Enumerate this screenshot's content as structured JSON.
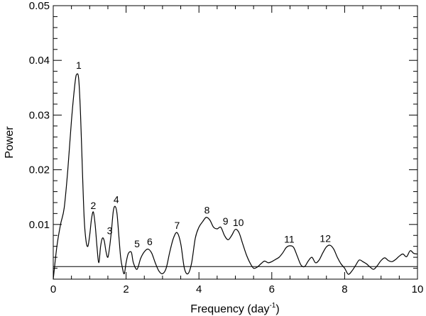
{
  "chart_data": {
    "type": "line",
    "title": "",
    "xlabel": "Frequency (day",
    "xlabel_sup": "-1",
    "xlabel_close": ")",
    "ylabel": "Power",
    "xlim": [
      0,
      10
    ],
    "ylim": [
      0,
      0.05
    ],
    "x_ticks": [
      0,
      2,
      4,
      6,
      8,
      10
    ],
    "x_tick_labels": [
      "0",
      "2",
      "4",
      "6",
      "8",
      "10"
    ],
    "y_ticks": [
      0.01,
      0.02,
      0.03,
      0.04,
      0.05
    ],
    "y_tick_labels": [
      "0.01",
      "0.02",
      "0.03",
      "0.04",
      "0.05"
    ],
    "grid": false,
    "legend": "none",
    "reference_line_y": 0.0023,
    "series": [
      {
        "x": [
          0.0,
          0.1,
          0.2,
          0.3,
          0.4,
          0.5,
          0.6,
          0.65,
          0.7,
          0.75,
          0.8,
          0.85,
          0.9,
          0.95,
          1.0,
          1.05,
          1.1,
          1.15,
          1.2,
          1.25,
          1.3,
          1.35,
          1.4,
          1.45,
          1.5,
          1.55,
          1.6,
          1.65,
          1.7,
          1.75,
          1.8,
          1.85,
          1.9,
          1.95,
          2.0,
          2.05,
          2.1,
          2.15,
          2.2,
          2.3,
          2.4,
          2.5,
          2.6,
          2.7,
          2.8,
          2.9,
          3.0,
          3.1,
          3.2,
          3.3,
          3.4,
          3.5,
          3.6,
          3.7,
          3.8,
          3.9,
          4.0,
          4.1,
          4.2,
          4.3,
          4.4,
          4.5,
          4.6,
          4.7,
          4.8,
          4.9,
          5.0,
          5.1,
          5.2,
          5.3,
          5.4,
          5.5,
          5.6,
          5.7,
          5.8,
          5.9,
          6.0,
          6.1,
          6.2,
          6.3,
          6.4,
          6.5,
          6.6,
          6.7,
          6.8,
          6.9,
          7.0,
          7.1,
          7.2,
          7.3,
          7.4,
          7.5,
          7.6,
          7.7,
          7.8,
          7.9,
          8.0,
          8.1,
          8.2,
          8.3,
          8.4,
          8.5,
          8.6,
          8.7,
          8.8,
          8.9,
          9.0,
          9.1,
          9.2,
          9.3,
          9.4,
          9.5,
          9.6,
          9.7,
          9.8,
          9.9,
          10.0
        ],
        "y": [
          0.0,
          0.006,
          0.01,
          0.013,
          0.02,
          0.029,
          0.036,
          0.0375,
          0.0365,
          0.03,
          0.02,
          0.011,
          0.007,
          0.006,
          0.008,
          0.011,
          0.0123,
          0.01,
          0.006,
          0.003,
          0.006,
          0.0075,
          0.007,
          0.005,
          0.004,
          0.006,
          0.009,
          0.0125,
          0.0133,
          0.012,
          0.008,
          0.004,
          0.002,
          0.001,
          0.003,
          0.0045,
          0.005,
          0.0048,
          0.003,
          0.0018,
          0.0038,
          0.005,
          0.0055,
          0.0048,
          0.003,
          0.0015,
          0.001,
          0.002,
          0.005,
          0.0075,
          0.0085,
          0.0065,
          0.002,
          0.001,
          0.003,
          0.0075,
          0.0095,
          0.0105,
          0.0113,
          0.0108,
          0.0095,
          0.0092,
          0.0095,
          0.008,
          0.0072,
          0.008,
          0.0091,
          0.0085,
          0.0065,
          0.0045,
          0.003,
          0.002,
          0.0022,
          0.0028,
          0.0033,
          0.003,
          0.0032,
          0.0036,
          0.004,
          0.0048,
          0.0058,
          0.0061,
          0.0058,
          0.0042,
          0.0026,
          0.0023,
          0.0033,
          0.004,
          0.003,
          0.0035,
          0.0048,
          0.0059,
          0.0062,
          0.0055,
          0.004,
          0.0028,
          0.002,
          0.0009,
          0.0015,
          0.0025,
          0.0035,
          0.0032,
          0.0028,
          0.0022,
          0.0018,
          0.0025,
          0.0034,
          0.0039,
          0.0034,
          0.0032,
          0.0036,
          0.0042,
          0.0046,
          0.0041,
          0.0052,
          0.0047,
          0.0046
        ]
      }
    ],
    "annotations": [
      {
        "text": "1",
        "x": 0.7,
        "y": 0.0385
      },
      {
        "text": "2",
        "x": 1.1,
        "y": 0.0128
      },
      {
        "text": "3",
        "x": 1.55,
        "y": 0.0082
      },
      {
        "text": "4",
        "x": 1.73,
        "y": 0.0139
      },
      {
        "text": "5",
        "x": 2.3,
        "y": 0.0058
      },
      {
        "text": "6",
        "x": 2.65,
        "y": 0.0062
      },
      {
        "text": "7",
        "x": 3.4,
        "y": 0.0092
      },
      {
        "text": "8",
        "x": 4.22,
        "y": 0.012
      },
      {
        "text": "9",
        "x": 4.73,
        "y": 0.01
      },
      {
        "text": "10",
        "x": 5.08,
        "y": 0.0097
      },
      {
        "text": "11",
        "x": 6.48,
        "y": 0.0067
      },
      {
        "text": "12",
        "x": 7.47,
        "y": 0.0068
      }
    ]
  }
}
